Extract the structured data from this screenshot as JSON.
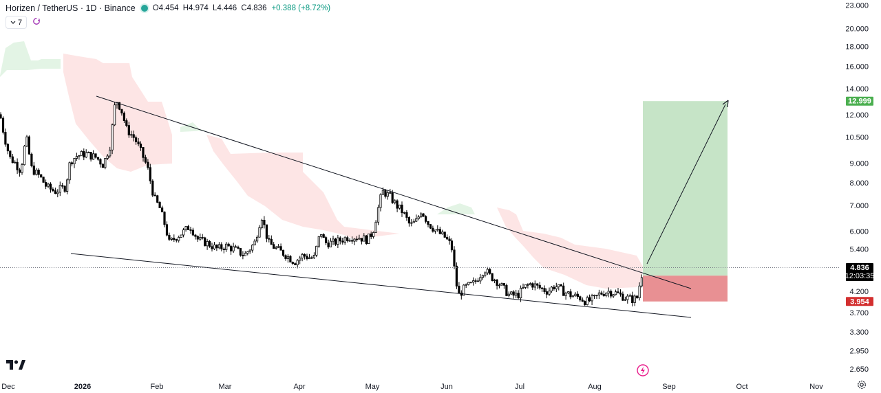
{
  "header": {
    "title": "Horizen / TetherUS · 1D · Binance",
    "ohlc": [
      {
        "key": "O",
        "value": "4.454"
      },
      {
        "key": "H",
        "value": "4.974"
      },
      {
        "key": "L",
        "value": "4.446"
      },
      {
        "key": "C",
        "value": "4.836"
      }
    ],
    "change": "+0.388 (+8.72%)",
    "indicator_count": "7"
  },
  "colors": {
    "up": "#089981",
    "down": "#f23645",
    "cloud_bear": "#fcdcdc",
    "cloud_bull": "#d9f0dc",
    "profit_zone": "#c3e3c4",
    "loss_zone": "#e78a8d",
    "target_badge": "#4caf50",
    "stop_badge": "#d32f2f"
  },
  "icons": {
    "logo": "tradingview-logo-icon",
    "flash": "flash-icon",
    "settings": "settings-gear-icon",
    "refresh": "refresh-icon"
  },
  "chart_data": {
    "type": "candlestick",
    "instrument": "Horizen / TetherUS",
    "timeframe": "1D",
    "exchange": "Binance",
    "scale": "log",
    "y_ticks": [
      "23.000",
      "20.000",
      "18.000",
      "16.000",
      "14.000",
      "12.000",
      "10.500",
      "9.000",
      "8.000",
      "7.000",
      "6.000",
      "5.400",
      "4.200",
      "3.700",
      "3.300",
      "2.950",
      "2.650"
    ],
    "x_ticks": [
      {
        "label": "Dec",
        "bold": false
      },
      {
        "label": "2026",
        "bold": true
      },
      {
        "label": "Feb",
        "bold": false
      },
      {
        "label": "Mar",
        "bold": false
      },
      {
        "label": "Apr",
        "bold": false
      },
      {
        "label": "May",
        "bold": false
      },
      {
        "label": "Jun",
        "bold": false
      },
      {
        "label": "Jul",
        "bold": false
      },
      {
        "label": "Aug",
        "bold": false
      },
      {
        "label": "Sep",
        "bold": false
      },
      {
        "label": "Oct",
        "bold": false
      },
      {
        "label": "Nov",
        "bold": false
      }
    ],
    "last_price": "4.836",
    "countdown": "12:03:35",
    "target_price": "12.999",
    "stop_price": "3.954",
    "target_value": 12.999,
    "entry_value": 4.61,
    "stop_value": 3.954,
    "price_path": [
      [
        0,
        12.0
      ],
      [
        6,
        10.6
      ],
      [
        14,
        9.3
      ],
      [
        22,
        9.0
      ],
      [
        30,
        8.6
      ],
      [
        38,
        10.5
      ],
      [
        46,
        8.7
      ],
      [
        58,
        8.3
      ],
      [
        68,
        7.8
      ],
      [
        80,
        7.6
      ],
      [
        95,
        7.8
      ],
      [
        102,
        9.1
      ],
      [
        112,
        9.4
      ],
      [
        124,
        9.5
      ],
      [
        140,
        9.3
      ],
      [
        150,
        8.9
      ],
      [
        160,
        10.0
      ],
      [
        168,
        13.2
      ],
      [
        176,
        12.4
      ],
      [
        184,
        11.0
      ],
      [
        196,
        10.4
      ],
      [
        205,
        9.6
      ],
      [
        214,
        8.8
      ],
      [
        224,
        7.3
      ],
      [
        232,
        6.9
      ],
      [
        240,
        6.2
      ],
      [
        246,
        5.6
      ],
      [
        256,
        5.8
      ],
      [
        268,
        6.0
      ],
      [
        276,
        6.2
      ],
      [
        288,
        5.7
      ],
      [
        300,
        5.6
      ],
      [
        316,
        5.4
      ],
      [
        328,
        5.5
      ],
      [
        340,
        5.4
      ],
      [
        355,
        5.2
      ],
      [
        370,
        5.6
      ],
      [
        380,
        6.6
      ],
      [
        390,
        5.6
      ],
      [
        402,
        5.4
      ],
      [
        416,
        5.2
      ],
      [
        428,
        5.0
      ],
      [
        440,
        5.2
      ],
      [
        456,
        5.1
      ],
      [
        466,
        6.0
      ],
      [
        472,
        5.6
      ],
      [
        484,
        5.6
      ],
      [
        496,
        5.7
      ],
      [
        506,
        5.8
      ],
      [
        520,
        5.8
      ],
      [
        534,
        5.7
      ],
      [
        542,
        6.0
      ],
      [
        552,
        7.2
      ],
      [
        556,
        7.6
      ],
      [
        566,
        7.4
      ],
      [
        576,
        7.0
      ],
      [
        586,
        6.7
      ],
      [
        596,
        6.2
      ],
      [
        606,
        6.4
      ],
      [
        612,
        6.8
      ],
      [
        622,
        6.3
      ],
      [
        634,
        6.0
      ],
      [
        646,
        5.8
      ],
      [
        656,
        5.5
      ],
      [
        662,
        4.5
      ],
      [
        666,
        4.1
      ],
      [
        676,
        4.3
      ],
      [
        688,
        4.4
      ],
      [
        696,
        4.6
      ],
      [
        704,
        4.8
      ],
      [
        712,
        4.6
      ],
      [
        720,
        4.5
      ],
      [
        730,
        4.3
      ],
      [
        740,
        4.1
      ],
      [
        752,
        4.1
      ],
      [
        762,
        4.3
      ],
      [
        772,
        4.4
      ],
      [
        782,
        4.3
      ],
      [
        796,
        4.2
      ],
      [
        806,
        4.35
      ],
      [
        818,
        4.2
      ],
      [
        830,
        4.1
      ],
      [
        842,
        4.05
      ],
      [
        852,
        3.95
      ],
      [
        862,
        4.0
      ],
      [
        872,
        4.15
      ],
      [
        884,
        4.2
      ],
      [
        896,
        4.15
      ],
      [
        908,
        4.05
      ],
      [
        920,
        4.0
      ],
      [
        926,
        4.05
      ],
      [
        930,
        4.45
      ],
      [
        935,
        4.836
      ]
    ]
  }
}
